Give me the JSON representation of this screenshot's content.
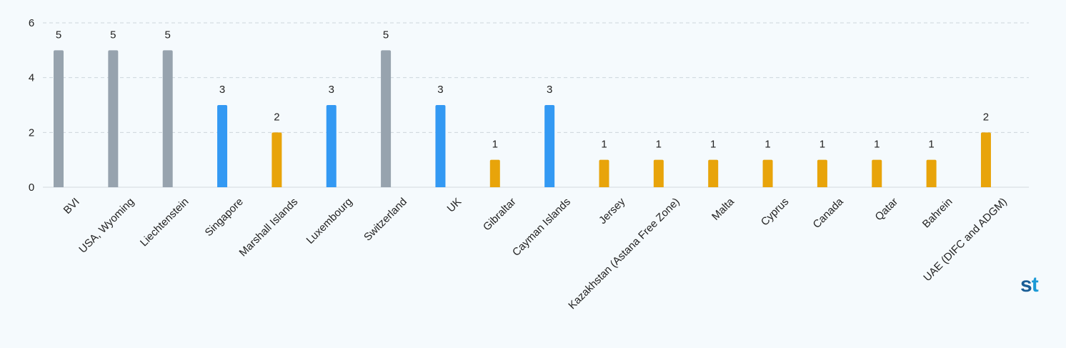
{
  "chart_data": {
    "type": "bar",
    "categories": [
      "BVI",
      "USA, Wyoming",
      "Liechtenstein",
      "Singapore",
      "Marshall Islands",
      "Luxembourg",
      "Switzerland",
      "UK",
      "Gibraltar",
      "Cayman Islands",
      "Jersey",
      "Kazakhstan (Astana Free Zone)",
      "Malta",
      "Cyprus",
      "Canada",
      "Qatar",
      "Bahrein",
      "UAE (DIFC and ADGM)"
    ],
    "values": [
      5,
      5,
      5,
      3,
      2,
      3,
      5,
      3,
      1,
      3,
      1,
      1,
      1,
      1,
      1,
      1,
      1,
      2
    ],
    "bar_colors": [
      "#97a3ae",
      "#97a3ae",
      "#97a3ae",
      "#3399f3",
      "#e8a40a",
      "#3399f3",
      "#97a3ae",
      "#3399f3",
      "#e8a40a",
      "#3399f3",
      "#e8a40a",
      "#e8a40a",
      "#e8a40a",
      "#e8a40a",
      "#e8a40a",
      "#e8a40a",
      "#e8a40a",
      "#e8a40a"
    ],
    "ylim": [
      0,
      6
    ],
    "yticks": [
      0,
      2,
      4,
      6
    ],
    "grid": true,
    "legend": "none",
    "title": "",
    "xlabel": "",
    "ylabel": ""
  },
  "logo": {
    "text": "st",
    "color_s": "#1a5e96",
    "color_t": "#1b9ad6"
  }
}
